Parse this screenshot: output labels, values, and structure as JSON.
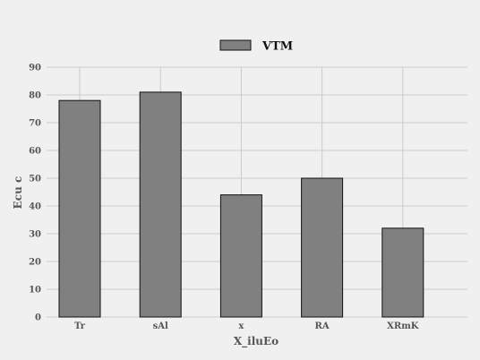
{
  "chart_data": {
    "type": "bar",
    "categories": [
      "Tr",
      "sAl",
      "x",
      "RA",
      "XRmK"
    ],
    "series": [
      {
        "name": "VTM",
        "values": [
          78,
          81,
          44,
          50,
          32
        ]
      }
    ],
    "title": "",
    "xlabel": "X_iluEo",
    "ylabel": "Ecu c",
    "ylim": [
      0,
      90
    ],
    "yticks": [
      0,
      10,
      20,
      30,
      40,
      50,
      60,
      70,
      80,
      90
    ],
    "grid": true,
    "legend_position": "top-center",
    "colors": {
      "bar_fill": "#808080",
      "bar_stroke": "#111111",
      "grid": "#cbcbcb",
      "background": "#f0f0f0"
    }
  }
}
